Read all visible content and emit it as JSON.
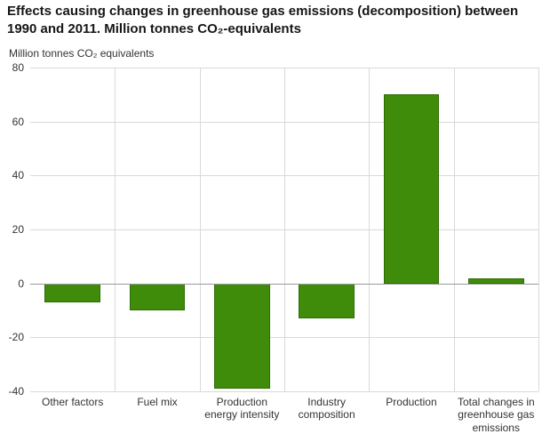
{
  "chart_data": {
    "type": "bar",
    "title": "Effects causing changes in greenhouse gas emissions (decomposition) between 1990 and 2011. Million tonnes CO₂-equivalents",
    "ylabel": "Million tonnes CO₂ equivalents",
    "xlabel": "",
    "categories": [
      "Other factors",
      "Fuel mix",
      "Production energy intensity",
      "Industry composition",
      "Production",
      "Total changes in greenhouse gas emissions"
    ],
    "values": [
      -7,
      -10,
      -39,
      -13,
      70,
      2
    ],
    "ylim": [
      -40,
      80
    ],
    "yticks": [
      -40,
      -20,
      0,
      20,
      40,
      60,
      80
    ],
    "bar_color": "#3e8c0a",
    "grid": true,
    "legend_position": "none"
  }
}
